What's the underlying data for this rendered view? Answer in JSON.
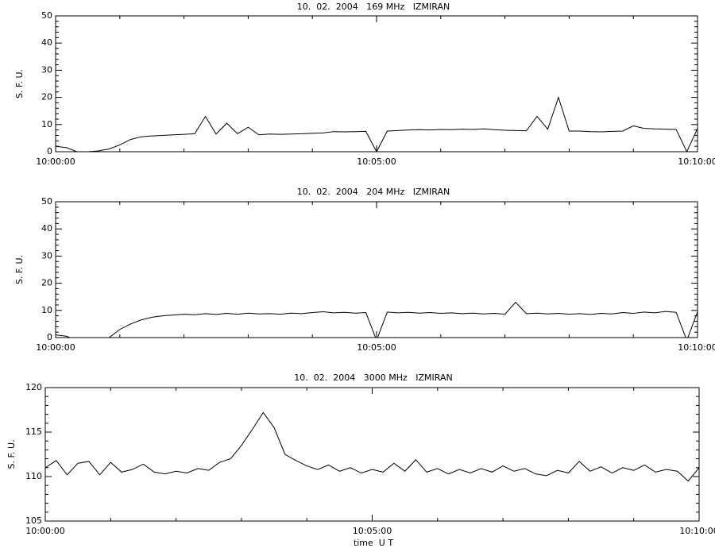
{
  "chart_data": [
    {
      "type": "line",
      "title": "10.  02.  2004   169 MHz   IZMIRAN",
      "ylabel": "S. F. U.",
      "color": "#000000",
      "x": [
        36000,
        36010,
        36020,
        36030,
        36040,
        36050,
        36060,
        36070,
        36080,
        36090,
        36100,
        36110,
        36120,
        36130,
        36140,
        36150,
        36160,
        36170,
        36180,
        36190,
        36200,
        36210,
        36220,
        36230,
        36240,
        36250,
        36260,
        36270,
        36280,
        36290,
        36300,
        36310,
        36320,
        36330,
        36340,
        36350,
        36360,
        36370,
        36380,
        36390,
        36400,
        36410,
        36420,
        36430,
        36440,
        36450,
        36460,
        36470,
        36480,
        36490,
        36500,
        36510,
        36520,
        36530,
        36540,
        36550,
        36560,
        36570,
        36580,
        36590,
        36600
      ],
      "values": [
        2,
        1.5,
        0,
        0,
        0.3,
        1,
        2.5,
        4.5,
        5.5,
        5.8,
        6,
        6.2,
        6.4,
        6.6,
        13,
        6.5,
        10.5,
        6.6,
        9,
        6.2,
        6.5,
        6.4,
        6.5,
        6.6,
        6.8,
        6.9,
        7.4,
        7.3,
        7.4,
        7.5,
        0,
        7.6,
        7.8,
        8,
        8.1,
        8,
        8.2,
        8.1,
        8.3,
        8.2,
        8.4,
        8.1,
        7.9,
        7.8,
        7.7,
        13,
        8.3,
        20,
        7.6,
        7.6,
        7.4,
        7.3,
        7.5,
        7.6,
        9.5,
        8.6,
        8.4,
        8.3,
        8.2,
        0,
        8.5
      ],
      "xlim": [
        36000,
        36600
      ],
      "xticks": [
        {
          "value": 36000,
          "label": "10:00:00"
        },
        {
          "value": 36300,
          "label": "10:05:00"
        },
        {
          "value": 36600,
          "label": "10:10:00"
        }
      ],
      "ylim": [
        0,
        50
      ],
      "yticks": [
        0,
        10,
        20,
        30,
        40,
        50
      ]
    },
    {
      "type": "line",
      "title": "10.  02.  2004   204 MHz   IZMIRAN",
      "ylabel": "S. F. U.",
      "color": "#000000",
      "x": [
        36000,
        36010,
        36020,
        36030,
        36040,
        36050,
        36060,
        36070,
        36080,
        36090,
        36100,
        36110,
        36120,
        36130,
        36140,
        36150,
        36160,
        36170,
        36180,
        36190,
        36200,
        36210,
        36220,
        36230,
        36240,
        36250,
        36260,
        36270,
        36280,
        36290,
        36300,
        36310,
        36320,
        36330,
        36340,
        36350,
        36360,
        36370,
        36380,
        36390,
        36400,
        36410,
        36420,
        36430,
        36440,
        36450,
        36460,
        36470,
        36480,
        36490,
        36500,
        36510,
        36520,
        36530,
        36540,
        36550,
        36560,
        36570,
        36580,
        36590,
        36600
      ],
      "values": [
        1,
        0.5,
        -1,
        -0.5,
        -1,
        0,
        3,
        5,
        6.5,
        7.5,
        8,
        8.3,
        8.6,
        8.4,
        8.8,
        8.5,
        8.9,
        8.6,
        9,
        8.7,
        8.8,
        8.6,
        9,
        8.8,
        9.2,
        9.5,
        9.1,
        9.3,
        9,
        9.2,
        -1,
        9.4,
        9.1,
        9.3,
        9,
        9.2,
        8.9,
        9.1,
        8.8,
        9,
        8.7,
        8.9,
        8.6,
        13,
        8.8,
        9,
        8.7,
        8.9,
        8.6,
        8.8,
        8.5,
        8.9,
        8.7,
        9.2,
        8.9,
        9.4,
        9.1,
        9.6,
        9.3,
        -1,
        9.5
      ],
      "xlim": [
        36000,
        36600
      ],
      "xticks": [
        {
          "value": 36000,
          "label": "10:00:00"
        },
        {
          "value": 36300,
          "label": "10:05:00"
        },
        {
          "value": 36600,
          "label": "10:10:00"
        }
      ],
      "ylim": [
        0,
        50
      ],
      "yticks": [
        0,
        10,
        20,
        30,
        40,
        50
      ]
    },
    {
      "type": "line",
      "title": "10.  02.  2004   3000 MHz   IZMIRAN",
      "ylabel": "S. F. U.",
      "xlabel": "time  U T",
      "color": "#000000",
      "x": [
        36000,
        36010,
        36020,
        36030,
        36040,
        36050,
        36060,
        36070,
        36080,
        36090,
        36100,
        36110,
        36120,
        36130,
        36140,
        36150,
        36160,
        36170,
        36180,
        36190,
        36200,
        36210,
        36220,
        36230,
        36240,
        36250,
        36260,
        36270,
        36280,
        36290,
        36300,
        36310,
        36320,
        36330,
        36340,
        36350,
        36360,
        36370,
        36380,
        36390,
        36400,
        36410,
        36420,
        36430,
        36440,
        36450,
        36460,
        36470,
        36480,
        36490,
        36500,
        36510,
        36520,
        36530,
        36540,
        36550,
        36560,
        36570,
        36580,
        36590,
        36600
      ],
      "values": [
        111,
        111.8,
        110.2,
        111.5,
        111.7,
        110.2,
        111.6,
        110.5,
        110.8,
        111.4,
        110.5,
        110.3,
        110.6,
        110.4,
        110.9,
        110.7,
        111.6,
        112,
        113.5,
        115.3,
        117.2,
        115.5,
        112.5,
        111.8,
        111.2,
        110.8,
        111.3,
        110.6,
        111,
        110.4,
        110.8,
        110.5,
        111.5,
        110.6,
        111.9,
        110.5,
        110.9,
        110.3,
        110.8,
        110.4,
        110.9,
        110.5,
        111.2,
        110.6,
        110.9,
        110.3,
        110.1,
        110.7,
        110.4,
        111.7,
        110.6,
        111.1,
        110.4,
        111,
        110.7,
        111.3,
        110.5,
        110.8,
        110.6,
        109.5,
        111
      ],
      "xlim": [
        36000,
        36600
      ],
      "xticks": [
        {
          "value": 36000,
          "label": "10:00:00"
        },
        {
          "value": 36300,
          "label": "10:05:00"
        },
        {
          "value": 36600,
          "label": "10:10:00"
        }
      ],
      "ylim": [
        105,
        120
      ],
      "yticks": [
        105,
        110,
        115,
        120
      ]
    }
  ]
}
